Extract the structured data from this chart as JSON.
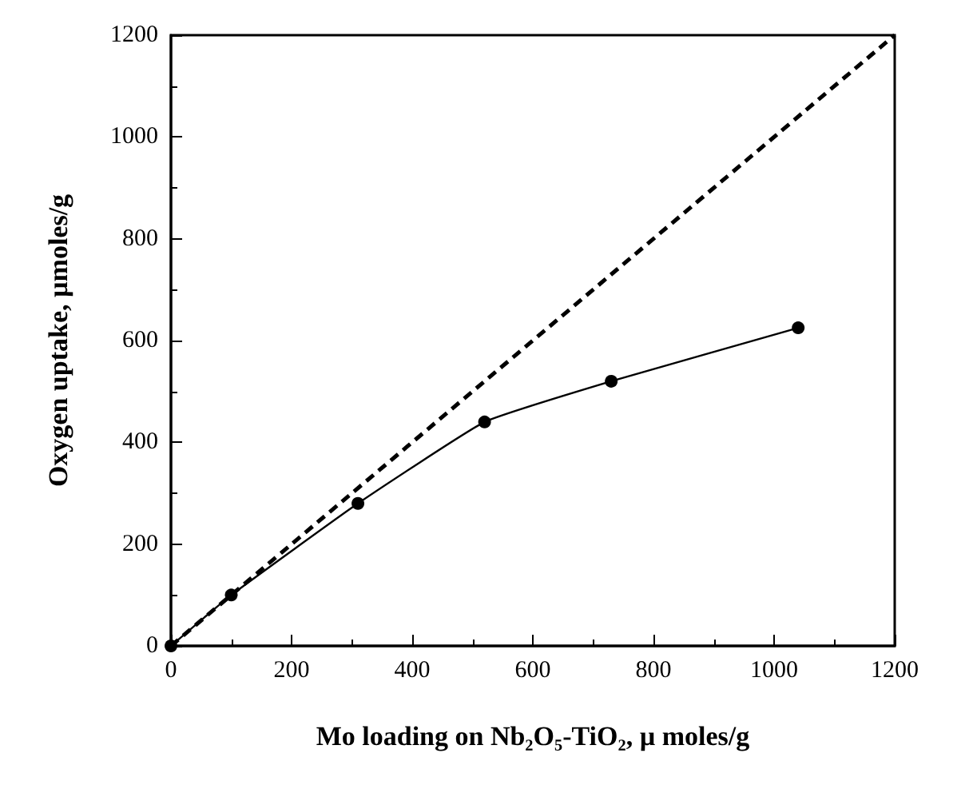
{
  "chart_data": {
    "type": "line",
    "xlabel": "Mo loading on Nb₂O₅-TiO₂, µ moles/g",
    "ylabel": "Oxygen uptake, µmoles/g",
    "xlim": [
      0,
      1200
    ],
    "xticks": [
      0,
      200,
      400,
      600,
      800,
      1000,
      1200
    ],
    "ylim": [
      0,
      1200
    ],
    "yticks": [
      0,
      200,
      400,
      600,
      800,
      1000,
      1200
    ],
    "grid": false,
    "series": [
      {
        "x": [
          0,
          100,
          310,
          520,
          730,
          1040
        ],
        "values": [
          0,
          100,
          280,
          440,
          520,
          625
        ],
        "color": "#000000",
        "marker": "circle",
        "line_style": "solid"
      },
      {
        "x": [
          0,
          1200
        ],
        "values": [
          0,
          1200
        ],
        "color": "#000000",
        "marker": "none",
        "line_style": "dashed"
      }
    ]
  }
}
